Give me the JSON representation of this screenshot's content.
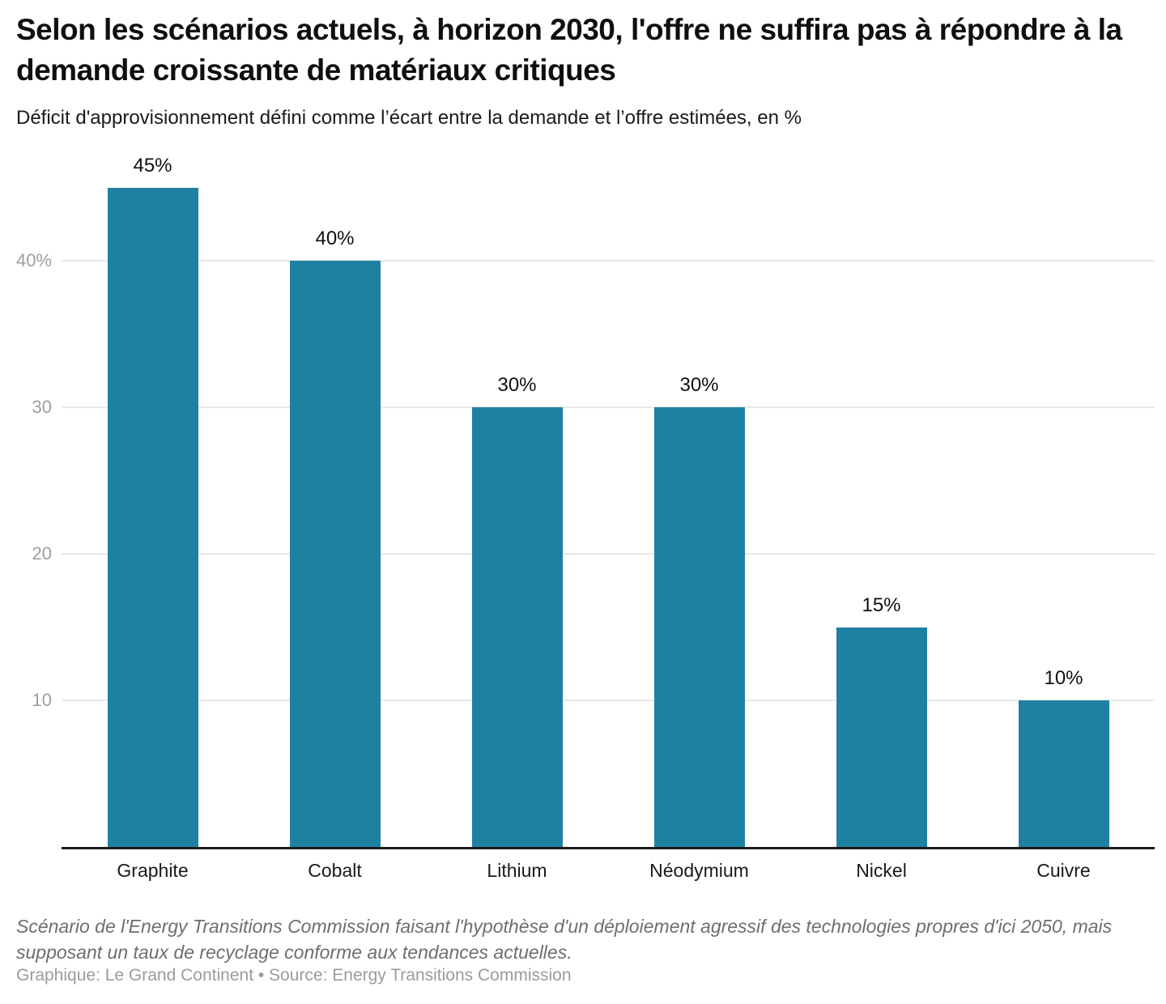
{
  "header": {
    "title": "Selon les scénarios actuels, à horizon 2030, l'offre ne suffira pas à répondre à la demande croissante de matériaux critiques",
    "subtitle": "Déficit d'approvisionnement défini comme l’écart entre la demande et l’offre estimées, en %"
  },
  "chart_data": {
    "type": "bar",
    "categories": [
      "Graphite",
      "Cobalt",
      "Lithium",
      "Néodymium",
      "Nickel",
      "Cuivre"
    ],
    "values": [
      45,
      40,
      30,
      30,
      15,
      10
    ],
    "value_labels": [
      "45%",
      "40%",
      "30%",
      "30%",
      "15%",
      "10%"
    ],
    "yticks": [
      {
        "value": 10,
        "label": "10"
      },
      {
        "value": 20,
        "label": "20"
      },
      {
        "value": 30,
        "label": "30"
      },
      {
        "value": 40,
        "label": "40%"
      }
    ],
    "ylim": [
      0,
      47
    ],
    "grid": true,
    "legend": "none",
    "bar_color": "#1e81a2",
    "gridline_color": "#e8e8e8",
    "axis_color": "#1a1a1a",
    "tick_color": "#9e9e9e"
  },
  "footer": {
    "note": "Scénario de l'Energy Transitions Commission faisant l'hypothèse d'un déploiement agressif des technologies propres d'ici 2050, mais supposant un taux de recyclage conforme aux tendances actuelles.",
    "credit": "Graphique: Le Grand Continent • Source: Energy Transitions Commission"
  }
}
